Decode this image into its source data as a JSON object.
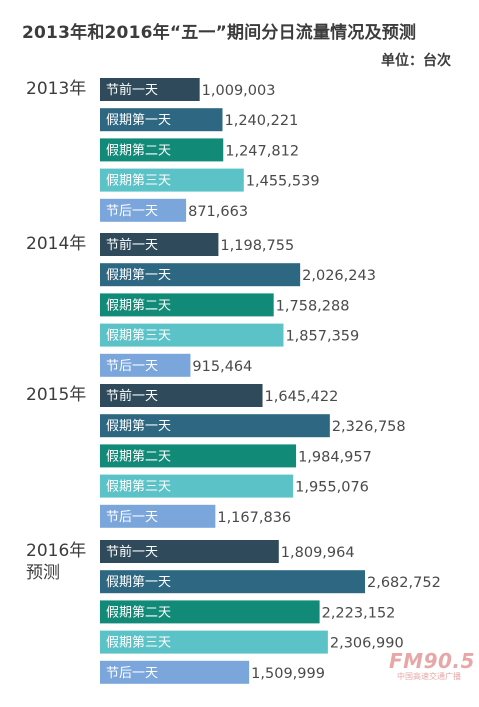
{
  "title": "2013年和2016年“五一”期间分日流量情况及预测",
  "unit": "单位：台次",
  "colors": {
    "节前一天": "#2f4a5a",
    "假期第一天": "#2d6782",
    "假期第二天": "#128a78",
    "假期第三天": "#5bc3c8",
    "节后一天": "#7aa6dc"
  },
  "watermark": {
    "main": "FM90.5",
    "sub": "中国高速交通广播"
  },
  "chart_data": {
    "type": "bar",
    "orientation": "horizontal",
    "title": "2013年和2016年“五一”期间分日流量情况及预测",
    "unit": "单位：台次",
    "x_range": [
      0,
      2700000
    ],
    "groups": [
      {
        "label": [
          "2013年"
        ],
        "bars": [
          {
            "label": "节前一天",
            "value": 1009003,
            "text": "1,009,003"
          },
          {
            "label": "假期第一天",
            "value": 1240221,
            "text": "1,240,221"
          },
          {
            "label": "假期第二天",
            "value": 1247812,
            "text": "1,247,812"
          },
          {
            "label": "假期第三天",
            "value": 1455539,
            "text": "1,455,539"
          },
          {
            "label": "节后一天",
            "value": 871663,
            "text": "871,663"
          }
        ]
      },
      {
        "label": [
          "2014年"
        ],
        "bars": [
          {
            "label": "节前一天",
            "value": 1198755,
            "text": "1,198,755"
          },
          {
            "label": "假期第一天",
            "value": 2026243,
            "text": "2,026,243"
          },
          {
            "label": "假期第二天",
            "value": 1758288,
            "text": "1,758,288"
          },
          {
            "label": "假期第三天",
            "value": 1857359,
            "text": "1,857,359"
          },
          {
            "label": "节后一天",
            "value": 915464,
            "text": "915,464"
          }
        ]
      },
      {
        "label": [
          "2015年"
        ],
        "bars": [
          {
            "label": "节前一天",
            "value": 1645422,
            "text": "1,645,422"
          },
          {
            "label": "假期第一天",
            "value": 2326758,
            "text": "2,326,758"
          },
          {
            "label": "假期第二天",
            "value": 1984957,
            "text": "1,984,957"
          },
          {
            "label": "假期第三天",
            "value": 1955076,
            "text": "1,955,076"
          },
          {
            "label": "节后一天",
            "value": 1167836,
            "text": "1,167,836"
          }
        ]
      },
      {
        "label": [
          "2016年",
          "预测"
        ],
        "bars": [
          {
            "label": "节前一天",
            "value": 1809964,
            "text": "1,809,964"
          },
          {
            "label": "假期第一天",
            "value": 2682752,
            "text": "2,682,752"
          },
          {
            "label": "假期第二天",
            "value": 2223152,
            "text": "2,223,152"
          },
          {
            "label": "假期第三天",
            "value": 2306990,
            "text": "2,306,990"
          },
          {
            "label": "节后一天",
            "value": 1509999,
            "text": "1,509,999"
          }
        ]
      }
    ]
  }
}
